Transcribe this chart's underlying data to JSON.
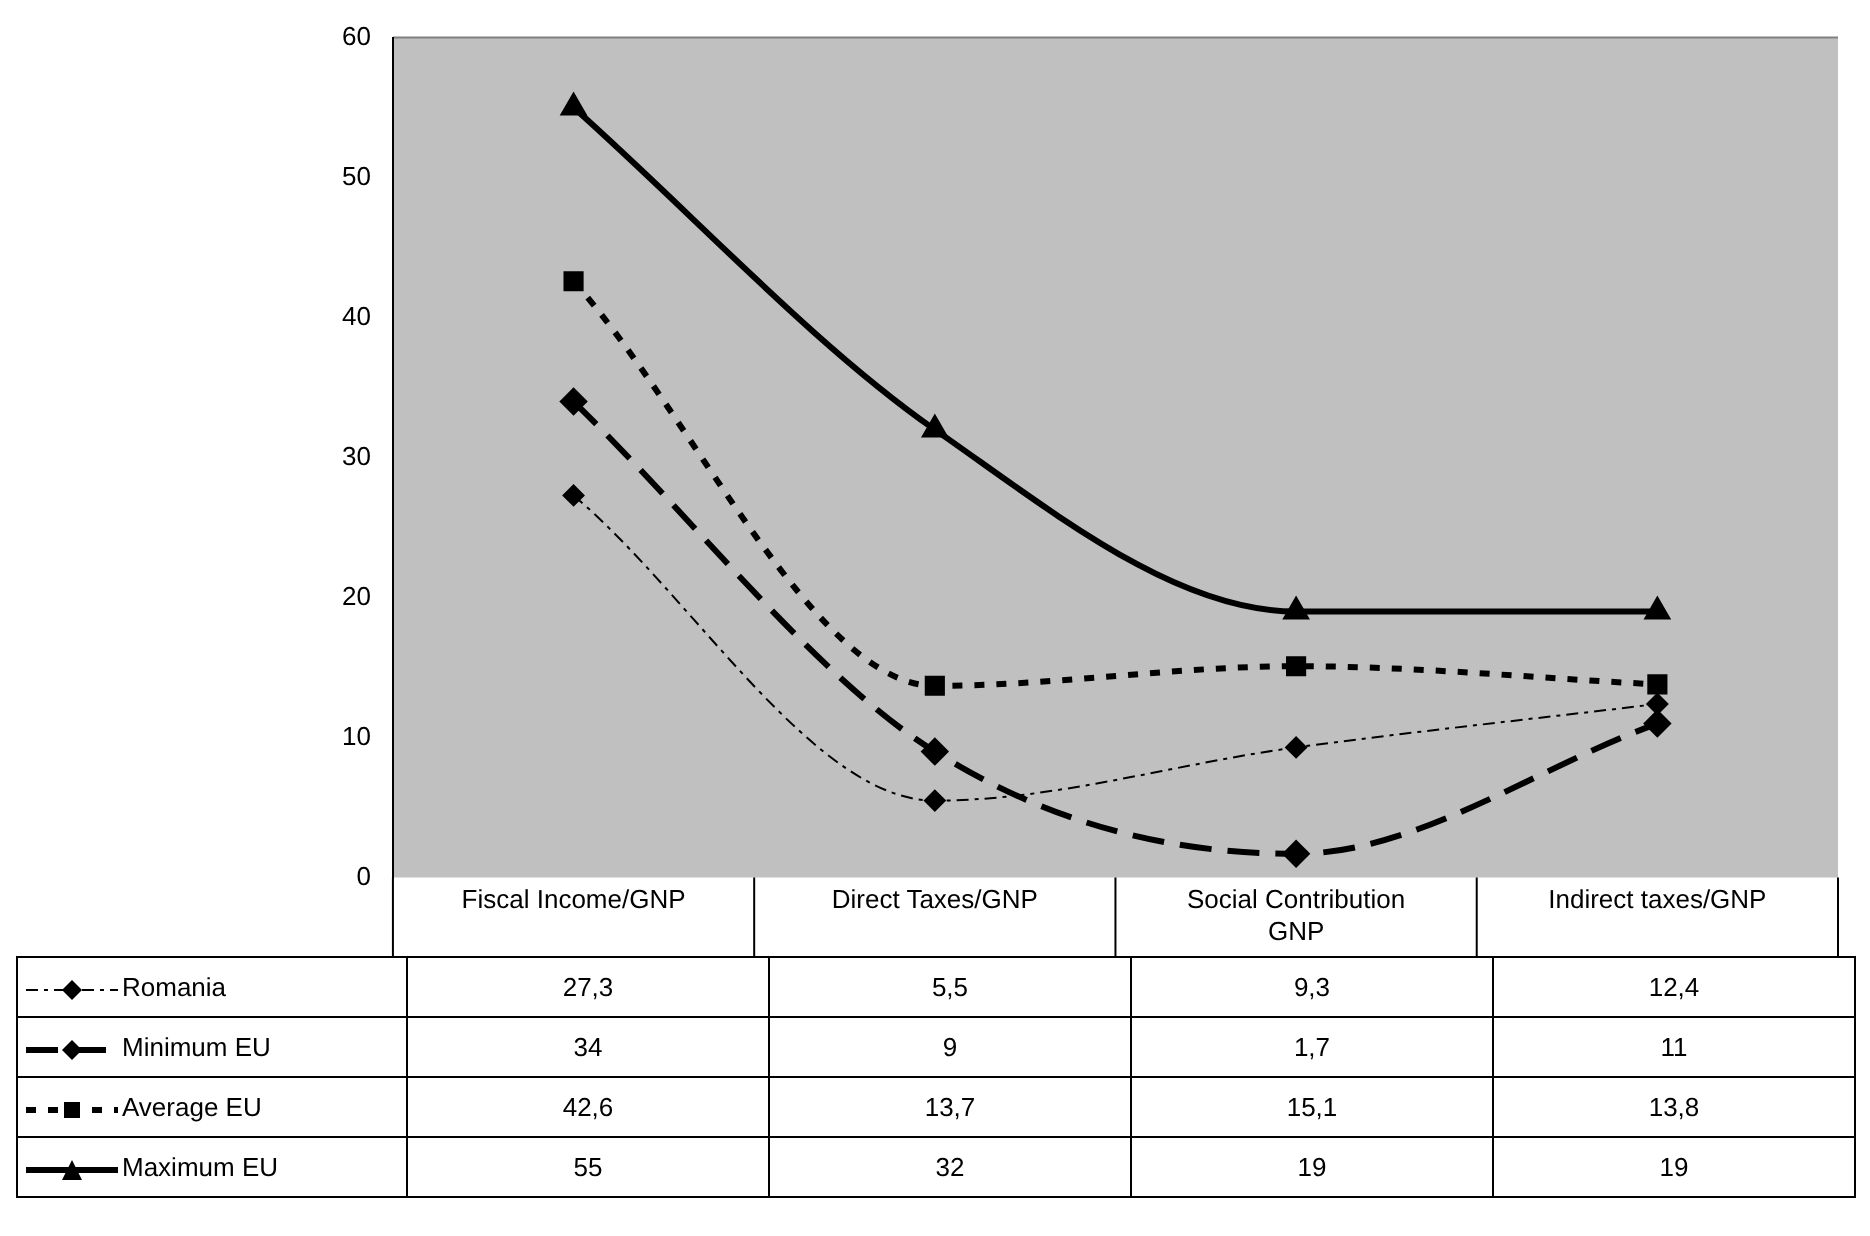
{
  "chart_data": {
    "type": "line",
    "categories": [
      "Fiscal Income/GNP",
      "Direct Taxes/GNP",
      "Social Contribution GNP",
      "Indirect taxes/GNP"
    ],
    "series": [
      {
        "name": "Romania",
        "color": "#000000",
        "values": [
          27.3,
          5.5,
          9.3,
          12.4
        ],
        "value_labels": [
          "27,3",
          "5,5",
          "9,3",
          "12,4"
        ],
        "marker": "diamond",
        "line_style": "dashed"
      },
      {
        "name": "Minimum EU",
        "color": "#000000",
        "values": [
          34,
          9,
          1.7,
          11
        ],
        "value_labels": [
          "34",
          "9",
          "1,7",
          "11"
        ],
        "marker": "diamond",
        "line_style": "dashed"
      },
      {
        "name": "Average EU",
        "color": "#000000",
        "values": [
          42.6,
          13.7,
          15.1,
          13.8
        ],
        "value_labels": [
          "42,6",
          "13,7",
          "15,1",
          "13,8"
        ],
        "marker": "square",
        "line_style": "dotted"
      },
      {
        "name": "Maximum EU",
        "color": "#000000",
        "values": [
          55,
          32,
          19,
          19
        ],
        "value_labels": [
          "55",
          "32",
          "19",
          "19"
        ],
        "marker": "triangle",
        "line_style": "solid"
      }
    ],
    "ylim": [
      0,
      60
    ],
    "yticks": [
      0,
      10,
      20,
      30,
      40,
      50,
      60
    ],
    "grid": false,
    "legend": "bottom"
  }
}
